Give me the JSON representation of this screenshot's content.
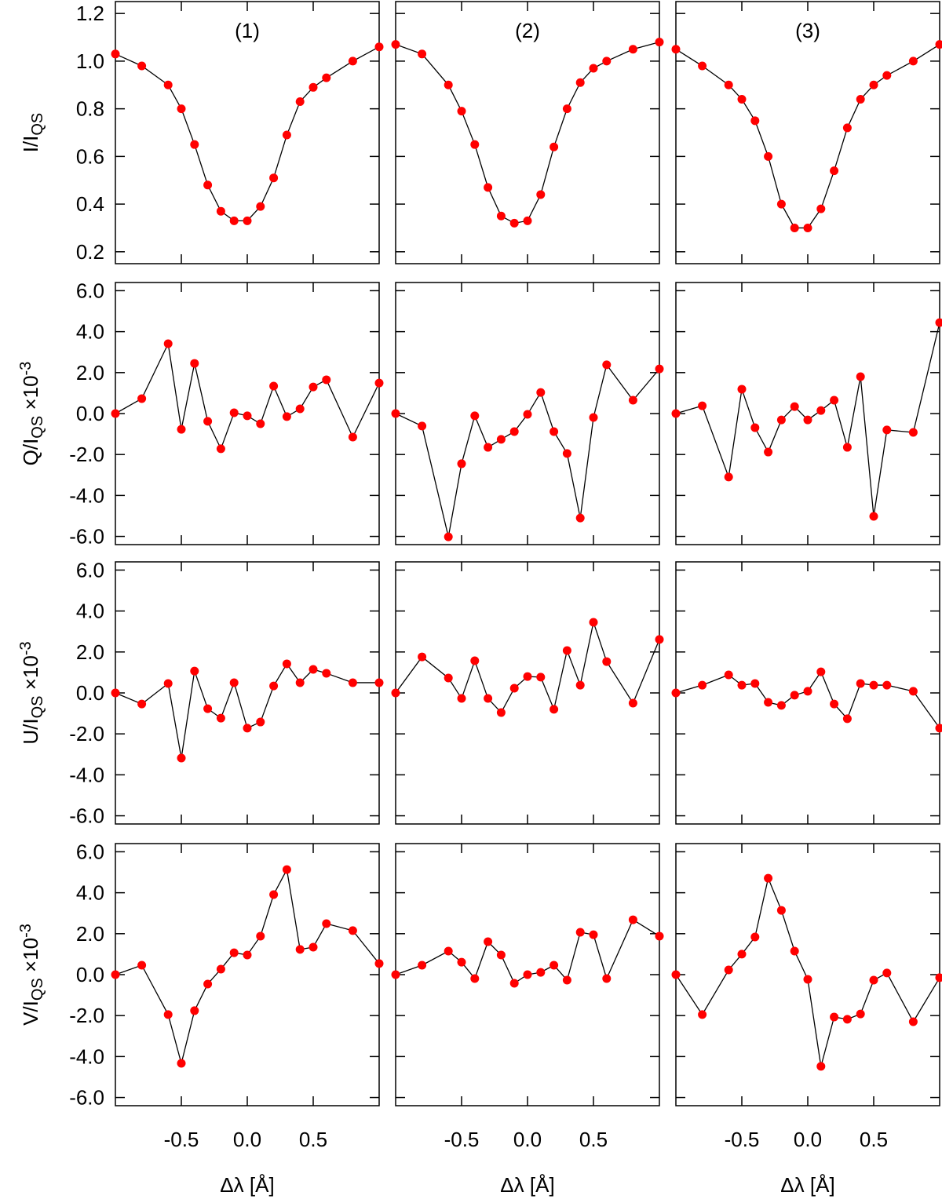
{
  "chart_data": [
    {
      "type": "line",
      "title": "(1)",
      "ylabel": [
        "I/I",
        "QS"
      ],
      "ytick_labels": true,
      "x": [
        -1,
        -0.8,
        -0.6,
        -0.5,
        -0.4,
        -0.3,
        -0.2,
        -0.1,
        0,
        0.1,
        0.2,
        0.3,
        0.4,
        0.5,
        0.6,
        0.8,
        1
      ],
      "values": [
        1.03,
        0.98,
        0.9,
        0.8,
        0.65,
        0.48,
        0.37,
        0.33,
        0.33,
        0.39,
        0.51,
        0.69,
        0.83,
        0.89,
        0.93,
        1.0,
        1.06
      ],
      "color": "#ff0000",
      "line_color": "#000000",
      "xlim": [
        -1,
        1
      ],
      "ylim": [
        0.15,
        1.25
      ],
      "xticks": [
        -0.5,
        0,
        0.5
      ],
      "yticks": [
        0.2,
        0.4,
        0.6,
        0.8,
        {
          "value": 1,
          "label": "1.0"
        },
        1.2
      ]
    },
    {
      "type": "line",
      "title": "(2)",
      "x": [
        -1,
        -0.8,
        -0.6,
        -0.5,
        -0.4,
        -0.3,
        -0.2,
        -0.1,
        0,
        0.1,
        0.2,
        0.3,
        0.4,
        0.5,
        0.6,
        0.8,
        1
      ],
      "values": [
        1.07,
        1.03,
        0.9,
        0.79,
        0.65,
        0.47,
        0.35,
        0.32,
        0.33,
        0.44,
        0.64,
        0.8,
        0.91,
        0.97,
        1.0,
        1.05,
        1.08
      ],
      "color": "#ff0000",
      "line_color": "#000000",
      "xlim": [
        -1,
        1
      ],
      "ylim": [
        0.15,
        1.25
      ],
      "xticks": [
        -0.5,
        0,
        0.5
      ],
      "yticks": [
        0.2,
        0.4,
        0.6,
        0.8,
        1,
        1.2
      ]
    },
    {
      "type": "line",
      "title": "(3)",
      "x": [
        -1,
        -0.8,
        -0.6,
        -0.5,
        -0.4,
        -0.3,
        -0.2,
        -0.1,
        0,
        0.1,
        0.2,
        0.3,
        0.4,
        0.5,
        0.6,
        0.8,
        1
      ],
      "values": [
        1.05,
        0.98,
        0.9,
        0.84,
        0.75,
        0.6,
        0.4,
        0.3,
        0.3,
        0.38,
        0.54,
        0.72,
        0.84,
        0.9,
        0.94,
        1.0,
        1.07
      ],
      "color": "#ff0000",
      "line_color": "#000000",
      "xlim": [
        -1,
        1
      ],
      "ylim": [
        0.15,
        1.25
      ],
      "xticks": [
        -0.5,
        0,
        0.5
      ],
      "yticks": [
        0.2,
        0.4,
        0.6,
        0.8,
        1,
        1.2
      ]
    },
    {
      "type": "line",
      "ylabel": [
        "Q/I",
        "QS",
        " ×10",
        "-3"
      ],
      "ytick_labels": true,
      "x": [
        -1,
        -0.8,
        -0.6,
        -0.5,
        -0.4,
        -0.3,
        -0.2,
        -0.1,
        0,
        0.1,
        0.2,
        0.3,
        0.4,
        0.5,
        0.6,
        0.8,
        1
      ],
      "values": [
        0,
        0.73,
        3.41,
        -0.77,
        2.45,
        -0.38,
        -1.72,
        0.04,
        -0.11,
        -0.5,
        1.34,
        -0.15,
        0.23,
        1.3,
        1.65,
        -1.15,
        1.49
      ],
      "color": "#ff0000",
      "line_color": "#000000",
      "xlim": [
        -1,
        1
      ],
      "ylim": [
        -6.4,
        6.4
      ],
      "xticks": [
        -0.5,
        0,
        0.5
      ],
      "yticks": [
        {
          "value": -6,
          "label": "-6.0"
        },
        {
          "value": -4,
          "label": "-4.0"
        },
        {
          "value": -2,
          "label": "-2.0"
        },
        {
          "value": 0,
          "label": "0.0"
        },
        {
          "value": 2,
          "label": "2.0"
        },
        {
          "value": 4,
          "label": "4.0"
        },
        {
          "value": 6,
          "label": "6.0"
        }
      ]
    },
    {
      "type": "line",
      "x": [
        -1,
        -0.8,
        -0.6,
        -0.5,
        -0.4,
        -0.3,
        -0.2,
        -0.1,
        0,
        0.1,
        0.2,
        0.3,
        0.4,
        0.5,
        0.6,
        0.8,
        1
      ],
      "values": [
        0,
        -0.61,
        -6.02,
        -2.45,
        -0.11,
        -1.65,
        -1.26,
        -0.88,
        -0.04,
        1.03,
        -0.88,
        -1.95,
        -5.1,
        -0.19,
        2.38,
        0.65,
        2.18
      ],
      "color": "#ff0000",
      "line_color": "#000000",
      "xlim": [
        -1,
        1
      ],
      "ylim": [
        -6.4,
        6.4
      ],
      "xticks": [
        -0.5,
        0,
        0.5
      ],
      "yticks": [
        -6,
        -4,
        -2,
        0,
        2,
        4,
        6
      ]
    },
    {
      "type": "line",
      "x": [
        -1,
        -0.8,
        -0.6,
        -0.5,
        -0.4,
        -0.3,
        -0.2,
        -0.1,
        0,
        0.1,
        0.2,
        0.3,
        0.4,
        0.5,
        0.6,
        0.8,
        1
      ],
      "values": [
        0,
        0.38,
        -3.1,
        1.19,
        -0.69,
        -1.88,
        -0.31,
        0.34,
        -0.31,
        0.15,
        0.65,
        -1.65,
        1.8,
        -5.02,
        -0.8,
        -0.92,
        4.44
      ],
      "color": "#ff0000",
      "line_color": "#000000",
      "xlim": [
        -1,
        1
      ],
      "ylim": [
        -6.4,
        6.4
      ],
      "xticks": [
        -0.5,
        0,
        0.5
      ],
      "yticks": [
        -6,
        -4,
        -2,
        0,
        2,
        4,
        6
      ]
    },
    {
      "type": "line",
      "ylabel": [
        "U/I",
        "QS",
        " ×10",
        "-3"
      ],
      "ytick_labels": true,
      "x": [
        -1,
        -0.8,
        -0.6,
        -0.5,
        -0.4,
        -0.3,
        -0.2,
        -0.1,
        0,
        0.1,
        0.2,
        0.3,
        0.4,
        0.5,
        0.6,
        0.8,
        1
      ],
      "values": [
        0,
        -0.54,
        0.46,
        -3.18,
        1.07,
        -0.77,
        -1.23,
        0.5,
        -1.72,
        -1.42,
        0.34,
        1.42,
        0.5,
        1.15,
        0.96,
        0.5,
        0.5
      ],
      "color": "#ff0000",
      "line_color": "#000000",
      "xlim": [
        -1,
        1
      ],
      "ylim": [
        -6.4,
        6.4
      ],
      "xticks": [
        -0.5,
        0,
        0.5
      ],
      "yticks": [
        {
          "value": -6,
          "label": "-6.0"
        },
        {
          "value": -4,
          "label": "-4.0"
        },
        {
          "value": -2,
          "label": "-2.0"
        },
        {
          "value": 0,
          "label": "0.0"
        },
        {
          "value": 2,
          "label": "2.0"
        },
        {
          "value": 4,
          "label": "4.0"
        },
        {
          "value": 6,
          "label": "6.0"
        }
      ]
    },
    {
      "type": "line",
      "x": [
        -1,
        -0.8,
        -0.6,
        -0.5,
        -0.4,
        -0.3,
        -0.2,
        -0.1,
        0,
        0.1,
        0.2,
        0.3,
        0.4,
        0.5,
        0.6,
        0.8,
        1
      ],
      "values": [
        0,
        1.76,
        0.73,
        -0.27,
        1.57,
        -0.27,
        -0.96,
        0.23,
        0.8,
        0.77,
        -0.8,
        2.07,
        0.38,
        3.45,
        1.53,
        -0.5,
        2.61
      ],
      "color": "#ff0000",
      "line_color": "#000000",
      "xlim": [
        -1,
        1
      ],
      "ylim": [
        -6.4,
        6.4
      ],
      "xticks": [
        -0.5,
        0,
        0.5
      ],
      "yticks": [
        -6,
        -4,
        -2,
        0,
        2,
        4,
        6
      ]
    },
    {
      "type": "line",
      "x": [
        -1,
        -0.8,
        -0.6,
        -0.5,
        -0.4,
        -0.3,
        -0.2,
        -0.1,
        0,
        0.1,
        0.2,
        0.3,
        0.4,
        0.5,
        0.6,
        0.8,
        1
      ],
      "values": [
        0,
        0.38,
        0.88,
        0.38,
        0.46,
        -0.46,
        -0.61,
        -0.11,
        0.08,
        1.03,
        -0.54,
        -1.26,
        0.46,
        0.38,
        0.38,
        0.08,
        -1.72
      ],
      "color": "#ff0000",
      "line_color": "#000000",
      "xlim": [
        -1,
        1
      ],
      "ylim": [
        -6.4,
        6.4
      ],
      "xticks": [
        -0.5,
        0,
        0.5
      ],
      "yticks": [
        -6,
        -4,
        -2,
        0,
        2,
        4,
        6
      ]
    },
    {
      "type": "line",
      "ylabel": [
        "V/I",
        "QS",
        " ×10",
        "-3"
      ],
      "ytick_labels": true,
      "xlabel": "Δλ [Å]",
      "xtick_labels": true,
      "x": [
        -1,
        -0.8,
        -0.6,
        -0.5,
        -0.4,
        -0.3,
        -0.2,
        -0.1,
        0,
        0.1,
        0.2,
        0.3,
        0.4,
        0.5,
        0.6,
        0.8,
        1
      ],
      "values": [
        0,
        0.46,
        -1.95,
        -4.33,
        -1.76,
        -0.46,
        0.27,
        1.07,
        0.96,
        1.88,
        3.91,
        5.13,
        1.23,
        1.34,
        2.49,
        2.15,
        0.54
      ],
      "color": "#ff0000",
      "line_color": "#000000",
      "xlim": [
        -1,
        1
      ],
      "ylim": [
        -6.4,
        6.4
      ],
      "xticks": [
        -0.5,
        {
          "value": 0,
          "label": "0.0"
        },
        0.5
      ],
      "yticks": [
        {
          "value": -6,
          "label": "-6.0"
        },
        {
          "value": -4,
          "label": "-4.0"
        },
        {
          "value": -2,
          "label": "-2.0"
        },
        {
          "value": 0,
          "label": "0.0"
        },
        {
          "value": 2,
          "label": "2.0"
        },
        {
          "value": 4,
          "label": "4.0"
        },
        {
          "value": 6,
          "label": "6.0"
        }
      ]
    },
    {
      "type": "line",
      "xlabel": "Δλ [Å]",
      "xtick_labels": true,
      "x": [
        -1,
        -0.8,
        -0.6,
        -0.5,
        -0.4,
        -0.3,
        -0.2,
        -0.1,
        0,
        0.1,
        0.2,
        0.3,
        0.4,
        0.5,
        0.6,
        0.8,
        1
      ],
      "values": [
        0,
        0.46,
        1.15,
        0.61,
        -0.19,
        1.61,
        0.96,
        -0.42,
        0,
        0.11,
        0.46,
        -0.27,
        2.07,
        1.95,
        -0.19,
        2.68,
        1.88
      ],
      "color": "#ff0000",
      "line_color": "#000000",
      "xlim": [
        -1,
        1
      ],
      "ylim": [
        -6.4,
        6.4
      ],
      "xticks": [
        -0.5,
        {
          "value": 0,
          "label": "0.0"
        },
        0.5
      ],
      "yticks": [
        -6,
        -4,
        -2,
        0,
        2,
        4,
        6
      ]
    },
    {
      "type": "line",
      "xlabel": "Δλ [Å]",
      "xtick_labels": true,
      "x": [
        -1,
        -0.8,
        -0.6,
        -0.5,
        -0.4,
        -0.3,
        -0.2,
        -0.1,
        0,
        0.1,
        0.2,
        0.3,
        0.4,
        0.5,
        0.6,
        0.8,
        1
      ],
      "values": [
        0,
        -1.95,
        0.23,
        1.0,
        1.84,
        4.71,
        3.14,
        1.15,
        -0.23,
        -4.48,
        -2.07,
        -2.18,
        -1.92,
        -0.27,
        0.08,
        -2.3,
        -0.15
      ],
      "color": "#ff0000",
      "line_color": "#000000",
      "xlim": [
        -1,
        1
      ],
      "ylim": [
        -6.4,
        6.4
      ],
      "xticks": [
        -0.5,
        {
          "value": 0,
          "label": "0.0"
        },
        0.5
      ],
      "yticks": [
        -6,
        -4,
        -2,
        0,
        2,
        4,
        6
      ]
    }
  ]
}
